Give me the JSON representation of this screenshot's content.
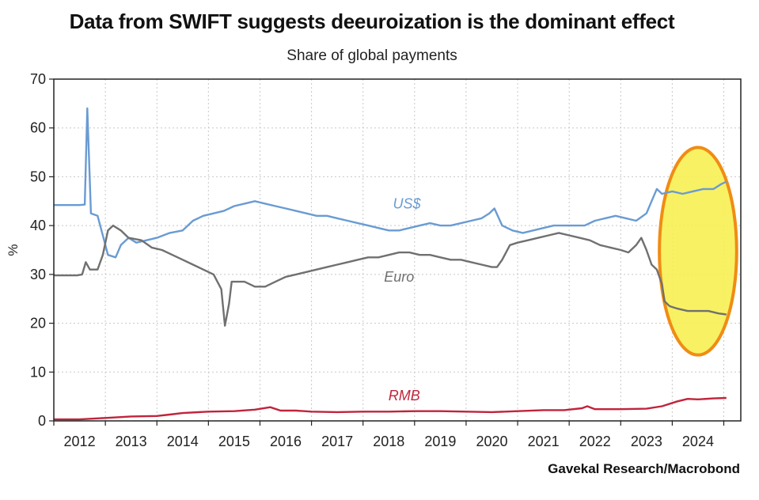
{
  "chart_data": {
    "type": "line",
    "title": "Data from SWIFT suggests deeuroization is the dominant effect",
    "subtitle": "Share of global payments",
    "ylabel": "%",
    "xlabel": "",
    "source": "Gavekal Research/Macrobond",
    "ylim": [
      0,
      70
    ],
    "yticks": [
      0,
      10,
      20,
      30,
      40,
      50,
      60,
      70
    ],
    "xlim": [
      2011.5,
      2024.83
    ],
    "xtick_labels": [
      "2012",
      "2013",
      "2014",
      "2015",
      "2016",
      "2017",
      "2018",
      "2019",
      "2020",
      "2021",
      "2022",
      "2023",
      "2024"
    ],
    "grid": true,
    "highlight": {
      "shape": "ellipse",
      "x_range": [
        2023.25,
        2024.75
      ],
      "y_range": [
        13.5,
        56
      ],
      "fill": "#f7ef52",
      "stroke": "#f08c14"
    },
    "series": [
      {
        "name": "US$",
        "color": "#6a9bd3",
        "points": [
          [
            2011.5,
            44.2
          ],
          [
            2012.0,
            44.2
          ],
          [
            2012.1,
            44.3
          ],
          [
            2012.15,
            64
          ],
          [
            2012.22,
            42.5
          ],
          [
            2012.35,
            42
          ],
          [
            2012.45,
            38
          ],
          [
            2012.55,
            34
          ],
          [
            2012.7,
            33.5
          ],
          [
            2012.8,
            36
          ],
          [
            2012.95,
            37.5
          ],
          [
            2013.1,
            36.5
          ],
          [
            2013.3,
            37
          ],
          [
            2013.5,
            37.5
          ],
          [
            2013.75,
            38.5
          ],
          [
            2014.0,
            39
          ],
          [
            2014.2,
            41
          ],
          [
            2014.4,
            42
          ],
          [
            2014.6,
            42.5
          ],
          [
            2014.8,
            43
          ],
          [
            2015.0,
            44
          ],
          [
            2015.2,
            44.5
          ],
          [
            2015.4,
            45
          ],
          [
            2015.6,
            44.5
          ],
          [
            2015.8,
            44
          ],
          [
            2016.0,
            43.5
          ],
          [
            2016.2,
            43
          ],
          [
            2016.4,
            42.5
          ],
          [
            2016.6,
            42
          ],
          [
            2016.8,
            42
          ],
          [
            2017.0,
            41.5
          ],
          [
            2017.2,
            41
          ],
          [
            2017.4,
            40.5
          ],
          [
            2017.6,
            40
          ],
          [
            2017.8,
            39.5
          ],
          [
            2018.0,
            39
          ],
          [
            2018.2,
            39
          ],
          [
            2018.4,
            39.5
          ],
          [
            2018.6,
            40
          ],
          [
            2018.8,
            40.5
          ],
          [
            2019.0,
            40
          ],
          [
            2019.2,
            40
          ],
          [
            2019.4,
            40.5
          ],
          [
            2019.6,
            41
          ],
          [
            2019.8,
            41.5
          ],
          [
            2019.95,
            42.5
          ],
          [
            2020.05,
            43.5
          ],
          [
            2020.2,
            40
          ],
          [
            2020.4,
            39
          ],
          [
            2020.6,
            38.5
          ],
          [
            2020.8,
            39
          ],
          [
            2021.0,
            39.5
          ],
          [
            2021.2,
            40
          ],
          [
            2021.4,
            40
          ],
          [
            2021.6,
            40
          ],
          [
            2021.8,
            40
          ],
          [
            2022.0,
            41
          ],
          [
            2022.2,
            41.5
          ],
          [
            2022.4,
            42
          ],
          [
            2022.6,
            41.5
          ],
          [
            2022.8,
            41
          ],
          [
            2023.0,
            42.5
          ],
          [
            2023.1,
            45
          ],
          [
            2023.2,
            47.5
          ],
          [
            2023.3,
            46.5
          ],
          [
            2023.5,
            47
          ],
          [
            2023.7,
            46.5
          ],
          [
            2023.9,
            47
          ],
          [
            2024.1,
            47.5
          ],
          [
            2024.3,
            47.5
          ],
          [
            2024.45,
            48.5
          ],
          [
            2024.55,
            49
          ]
        ]
      },
      {
        "name": "Euro",
        "color": "#707070",
        "points": [
          [
            2011.5,
            29.8
          ],
          [
            2011.95,
            29.8
          ],
          [
            2012.05,
            30
          ],
          [
            2012.12,
            32.5
          ],
          [
            2012.2,
            31
          ],
          [
            2012.35,
            31
          ],
          [
            2012.45,
            34
          ],
          [
            2012.55,
            39
          ],
          [
            2012.65,
            40
          ],
          [
            2012.8,
            39
          ],
          [
            2012.95,
            37.5
          ],
          [
            2013.2,
            37
          ],
          [
            2013.4,
            35.5
          ],
          [
            2013.6,
            35
          ],
          [
            2013.8,
            34
          ],
          [
            2014.0,
            33
          ],
          [
            2014.2,
            32
          ],
          [
            2014.4,
            31
          ],
          [
            2014.6,
            30
          ],
          [
            2014.75,
            27
          ],
          [
            2014.82,
            19.5
          ],
          [
            2014.9,
            24
          ],
          [
            2014.95,
            28.5
          ],
          [
            2015.2,
            28.5
          ],
          [
            2015.4,
            27.5
          ],
          [
            2015.6,
            27.5
          ],
          [
            2015.8,
            28.5
          ],
          [
            2016.0,
            29.5
          ],
          [
            2016.2,
            30
          ],
          [
            2016.4,
            30.5
          ],
          [
            2016.6,
            31
          ],
          [
            2016.8,
            31.5
          ],
          [
            2017.0,
            32
          ],
          [
            2017.2,
            32.5
          ],
          [
            2017.4,
            33
          ],
          [
            2017.6,
            33.5
          ],
          [
            2017.8,
            33.5
          ],
          [
            2018.0,
            34
          ],
          [
            2018.2,
            34.5
          ],
          [
            2018.4,
            34.5
          ],
          [
            2018.6,
            34
          ],
          [
            2018.8,
            34
          ],
          [
            2019.0,
            33.5
          ],
          [
            2019.2,
            33
          ],
          [
            2019.4,
            33
          ],
          [
            2019.6,
            32.5
          ],
          [
            2019.8,
            32
          ],
          [
            2020.0,
            31.5
          ],
          [
            2020.1,
            31.5
          ],
          [
            2020.2,
            33
          ],
          [
            2020.35,
            36
          ],
          [
            2020.5,
            36.5
          ],
          [
            2020.7,
            37
          ],
          [
            2020.9,
            37.5
          ],
          [
            2021.1,
            38
          ],
          [
            2021.3,
            38.5
          ],
          [
            2021.5,
            38
          ],
          [
            2021.7,
            37.5
          ],
          [
            2021.9,
            37
          ],
          [
            2022.1,
            36
          ],
          [
            2022.3,
            35.5
          ],
          [
            2022.5,
            35
          ],
          [
            2022.65,
            34.5
          ],
          [
            2022.8,
            36
          ],
          [
            2022.9,
            37.5
          ],
          [
            2023.0,
            35
          ],
          [
            2023.1,
            32
          ],
          [
            2023.2,
            31
          ],
          [
            2023.3,
            28
          ],
          [
            2023.35,
            24.5
          ],
          [
            2023.45,
            23.5
          ],
          [
            2023.6,
            23
          ],
          [
            2023.8,
            22.5
          ],
          [
            2024.0,
            22.5
          ],
          [
            2024.2,
            22.5
          ],
          [
            2024.4,
            22
          ],
          [
            2024.55,
            21.8
          ]
        ]
      },
      {
        "name": "RMB",
        "color": "#c0243c",
        "points": [
          [
            2011.5,
            0.3
          ],
          [
            2012.0,
            0.3
          ],
          [
            2012.5,
            0.6
          ],
          [
            2013.0,
            0.9
          ],
          [
            2013.5,
            1.0
          ],
          [
            2013.75,
            1.3
          ],
          [
            2014.0,
            1.6
          ],
          [
            2014.5,
            1.9
          ],
          [
            2015.0,
            2.0
          ],
          [
            2015.4,
            2.3
          ],
          [
            2015.7,
            2.8
          ],
          [
            2015.9,
            2.1
          ],
          [
            2016.2,
            2.1
          ],
          [
            2016.5,
            1.9
          ],
          [
            2017.0,
            1.8
          ],
          [
            2017.5,
            1.9
          ],
          [
            2018.0,
            1.9
          ],
          [
            2018.5,
            2.0
          ],
          [
            2019.0,
            2.0
          ],
          [
            2019.5,
            1.9
          ],
          [
            2020.0,
            1.8
          ],
          [
            2020.5,
            2.0
          ],
          [
            2021.0,
            2.2
          ],
          [
            2021.4,
            2.2
          ],
          [
            2021.75,
            2.6
          ],
          [
            2021.85,
            3.0
          ],
          [
            2022.0,
            2.4
          ],
          [
            2022.5,
            2.4
          ],
          [
            2023.0,
            2.5
          ],
          [
            2023.3,
            3.0
          ],
          [
            2023.6,
            4.0
          ],
          [
            2023.8,
            4.5
          ],
          [
            2024.0,
            4.4
          ],
          [
            2024.3,
            4.6
          ],
          [
            2024.55,
            4.7
          ]
        ]
      }
    ]
  }
}
